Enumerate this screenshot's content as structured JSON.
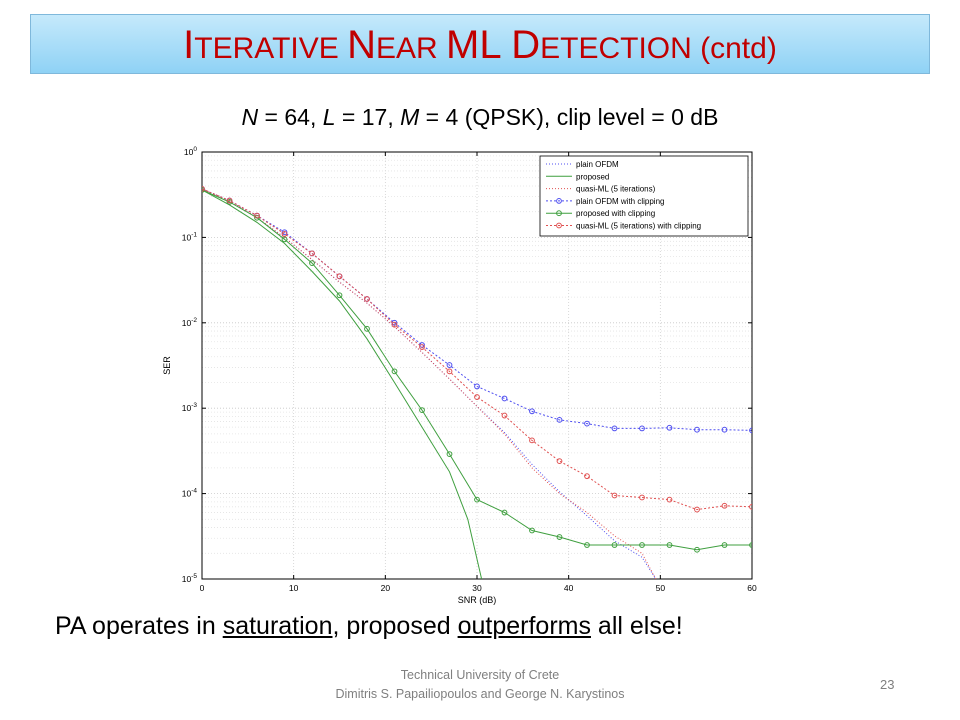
{
  "slide": {
    "title_parts": [
      "I",
      "TERATIVE ",
      "N",
      "EAR ",
      "ML D",
      "ETECTION",
      " (cntd)"
    ],
    "subtitle": {
      "parts": [
        {
          "t": "N",
          "i": true
        },
        {
          "t": " = 64, ",
          "i": false
        },
        {
          "t": "L",
          "i": true
        },
        {
          "t": " = 17, ",
          "i": false
        },
        {
          "t": "M",
          "i": true
        },
        {
          "t": " = 4 (QPSK), clip level = 0 dB",
          "i": false
        }
      ]
    },
    "caption": {
      "parts": [
        {
          "t": "PA operates in ",
          "u": false
        },
        {
          "t": "saturation",
          "u": true
        },
        {
          "t": ", proposed ",
          "u": false
        },
        {
          "t": "outperforms",
          "u": true
        },
        {
          "t": " all else!",
          "u": false
        }
      ]
    },
    "footer_line1": "Technical University of Crete",
    "footer_line2": "Dimitris S. Papailiopoulos  and George N. Karystinos",
    "page_number": "23"
  },
  "chart_data": {
    "type": "line",
    "xlabel": "SNR (dB)",
    "ylabel": "SER",
    "xlim": [
      0,
      60
    ],
    "ylim": [
      1e-05,
      1
    ],
    "yscale": "log",
    "grid": true,
    "legend_position": "top-right",
    "x_ticks": [
      "0",
      "10",
      "20",
      "30",
      "40",
      "50",
      "60"
    ],
    "y_ticks": [
      {
        "m": "10",
        "e": "-5"
      },
      {
        "m": "10",
        "e": "-4"
      },
      {
        "m": "10",
        "e": "-3"
      },
      {
        "m": "10",
        "e": "-2"
      },
      {
        "m": "10",
        "e": "-1"
      },
      {
        "m": "10",
        "e": "0"
      }
    ],
    "series": [
      {
        "name": "plain OFDM",
        "color": "#4f4ff0",
        "dash": "1,2",
        "marker": false,
        "x": [
          0,
          3,
          6,
          9,
          12,
          15,
          18,
          21,
          24,
          27,
          30,
          33,
          36,
          39,
          42,
          45,
          48,
          49.5
        ],
        "y": [
          0.37,
          0.27,
          0.17,
          0.1,
          0.055,
          0.03,
          0.017,
          0.009,
          0.0045,
          0.0022,
          0.00105,
          0.00052,
          0.00022,
          0.000105,
          5.5e-05,
          2.8e-05,
          1.8e-05,
          1e-05
        ]
      },
      {
        "name": "proposed",
        "color": "#3f9f3f",
        "dash": "",
        "marker": false,
        "x": [
          0,
          3,
          6,
          9,
          12,
          15,
          18,
          21,
          24,
          27,
          29,
          30.5
        ],
        "y": [
          0.36,
          0.24,
          0.15,
          0.085,
          0.04,
          0.018,
          0.0065,
          0.002,
          0.0006,
          0.00018,
          5e-05,
          1e-05
        ]
      },
      {
        "name": "quasi-ML (5 iterations)",
        "color": "#e05050",
        "dash": "1,2",
        "marker": false,
        "x": [
          0,
          3,
          6,
          9,
          12,
          15,
          18,
          21,
          24,
          27,
          30,
          33,
          36,
          39,
          42,
          45,
          48,
          49.5
        ],
        "y": [
          0.37,
          0.27,
          0.17,
          0.1,
          0.055,
          0.03,
          0.017,
          0.009,
          0.0045,
          0.0022,
          0.00105,
          0.0005,
          0.0002,
          0.0001,
          6e-05,
          3.2e-05,
          2e-05,
          1e-05
        ]
      },
      {
        "name": "plain OFDM with clipping",
        "color": "#4f4ff0",
        "dash": "2,2",
        "marker": true,
        "x": [
          0,
          3,
          6,
          9,
          12,
          15,
          18,
          21,
          24,
          27,
          30,
          33,
          36,
          39,
          42,
          45,
          48,
          51,
          54,
          57,
          60
        ],
        "y": [
          0.37,
          0.27,
          0.18,
          0.115,
          0.065,
          0.035,
          0.019,
          0.01,
          0.0055,
          0.0032,
          0.0018,
          0.0013,
          0.00092,
          0.00073,
          0.00066,
          0.00058,
          0.00058,
          0.00059,
          0.00056,
          0.00056,
          0.00055
        ]
      },
      {
        "name": "proposed with clipping",
        "color": "#3f9f3f",
        "dash": "",
        "marker": true,
        "x": [
          0,
          3,
          6,
          9,
          12,
          15,
          18,
          21,
          24,
          27,
          30,
          33,
          36,
          39,
          42,
          45,
          48,
          51,
          54,
          57,
          60
        ],
        "y": [
          0.36,
          0.26,
          0.17,
          0.095,
          0.05,
          0.021,
          0.0085,
          0.0027,
          0.00095,
          0.00029,
          8.5e-05,
          6e-05,
          3.7e-05,
          3.1e-05,
          2.5e-05,
          2.5e-05,
          2.5e-05,
          2.5e-05,
          2.2e-05,
          2.5e-05,
          2.5e-05
        ]
      },
      {
        "name": "quasi-ML (5 iterations) with clipping",
        "color": "#e05050",
        "dash": "2,2",
        "marker": true,
        "x": [
          0,
          3,
          6,
          9,
          12,
          15,
          18,
          21,
          24,
          27,
          30,
          33,
          36,
          39,
          42,
          45,
          48,
          51,
          54,
          57,
          60
        ],
        "y": [
          0.37,
          0.27,
          0.18,
          0.11,
          0.065,
          0.035,
          0.019,
          0.0095,
          0.0052,
          0.0027,
          0.00135,
          0.00082,
          0.00042,
          0.00024,
          0.00016,
          9.5e-05,
          9e-05,
          8.5e-05,
          6.5e-05,
          7.2e-05,
          7e-05
        ]
      }
    ]
  }
}
